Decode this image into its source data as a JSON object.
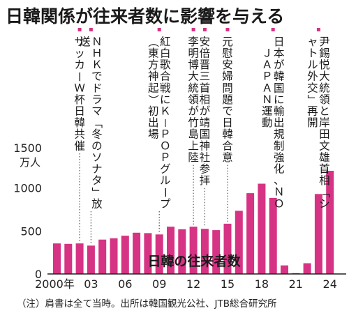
{
  "chart_data": {
    "type": "bar",
    "title": "日韓関係が往来者数に影響を与える",
    "series_label": "日韓の往来者数",
    "y_unit_value": "1500",
    "y_unit_label": "万人",
    "y_ticks": [
      0,
      500,
      1000
    ],
    "ylim": [
      0,
      1500
    ],
    "x_tick_labels": [
      {
        "year": 2000,
        "label": "2000年"
      },
      {
        "year": 2003,
        "label": "03"
      },
      {
        "year": 2006,
        "label": "06"
      },
      {
        "year": 2009,
        "label": "09"
      },
      {
        "year": 2012,
        "label": "12"
      },
      {
        "year": 2015,
        "label": "15"
      },
      {
        "year": 2018,
        "label": "18"
      },
      {
        "year": 2021,
        "label": "21"
      },
      {
        "year": 2024,
        "label": "24"
      }
    ],
    "years": [
      2000,
      2001,
      2002,
      2003,
      2004,
      2005,
      2006,
      2007,
      2008,
      2009,
      2010,
      2011,
      2012,
      2013,
      2014,
      2015,
      2016,
      2017,
      2018,
      2019,
      2020,
      2021,
      2022,
      2023,
      2024
    ],
    "values": [
      355,
      350,
      355,
      330,
      400,
      415,
      445,
      480,
      475,
      460,
      550,
      520,
      550,
      525,
      510,
      585,
      735,
      940,
      1050,
      885,
      100,
      10,
      125,
      930,
      1200
    ],
    "grid": false,
    "bar_color": "#d63384",
    "annotations": [
      {
        "year": 2002,
        "text": "サッカーＷ杯日韓共催"
      },
      {
        "year": 2003,
        "text": "ＮＨＫでドラマ「冬のソナタ」放送"
      },
      {
        "year": 2009,
        "text": "紅白歌合戦にＫ－ＰＯＰグループ（東方神起）初出場"
      },
      {
        "year": 2012,
        "text": "李明博大統領が竹島上陸"
      },
      {
        "year": 2013,
        "text": "安倍晋三首相が靖国神社参拝"
      },
      {
        "year": 2015,
        "text": "元慰安婦問題で日韓合意"
      },
      {
        "year": 2019,
        "text": "日本が韓国に輸出規制強化、ＮＯ ＪＡＰＡＮ運動"
      },
      {
        "year": 2023,
        "text": "尹錫悦大統領と岸田文雄首相「シャトル外交」再開"
      }
    ],
    "footnote": "（注）肩書は全て当時。出所は韓国観光公社、JTB総合研究所"
  }
}
